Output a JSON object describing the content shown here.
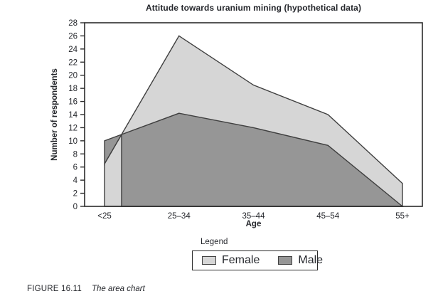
{
  "title": "Attitude towards uranium mining (hypothetical data)",
  "chart_data": {
    "type": "area",
    "title": "Attitude towards uranium mining (hypothetical data)",
    "categories": [
      "<25",
      "25–34",
      "35–44",
      "45–54",
      "55+"
    ],
    "series": [
      {
        "name": "Female",
        "values": [
          6.5,
          26,
          18.5,
          14,
          3.5
        ],
        "color": "#d6d6d6"
      },
      {
        "name": "Male",
        "values": [
          10,
          14.2,
          12,
          9.3,
          0
        ],
        "color": "#969696"
      }
    ],
    "xlabel": "Age",
    "ylabel": "Number of respondents",
    "ylim": [
      0,
      28
    ],
    "y_tick_step": 2,
    "grid": false,
    "legend_position": "bottom",
    "note": "Male area drawn in front of Female area; areas overlap from a shared baseline"
  },
  "axes": {
    "xlabel": "Age",
    "ylabel": "Number of respondents"
  },
  "legend": {
    "title": "Legend",
    "items": [
      {
        "label": "Female",
        "color": "#d6d6d6"
      },
      {
        "label": "Male",
        "color": "#969696"
      }
    ]
  },
  "caption": {
    "figure_label": "FIGURE 16.11",
    "figure_title": "The area chart"
  },
  "colors": {
    "female_fill": "#d6d6d6",
    "male_fill": "#969696",
    "area_outline": "#3f3f3f",
    "frame": "#2b2b2b",
    "text": "#25272c"
  }
}
